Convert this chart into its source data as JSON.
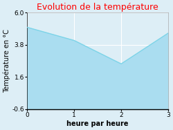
{
  "title": "Evolution de la température",
  "title_color": "#ff0000",
  "xlabel": "heure par heure",
  "ylabel": "Température en °C",
  "x": [
    0,
    1,
    2,
    3
  ],
  "y": [
    5.0,
    4.1,
    2.5,
    4.6
  ],
  "xlim": [
    0,
    3
  ],
  "ylim": [
    -0.6,
    6.0
  ],
  "yticks": [
    -0.6,
    1.6,
    3.8,
    6.0
  ],
  "xticks": [
    0,
    1,
    2,
    3
  ],
  "line_color": "#7dd4e8",
  "fill_color": "#aaddf0",
  "bg_color": "#ddeef6",
  "fig_bg_color": "#ddeef6",
  "grid_color": "#ffffff",
  "title_fontsize": 9,
  "label_fontsize": 7,
  "tick_fontsize": 6.5
}
